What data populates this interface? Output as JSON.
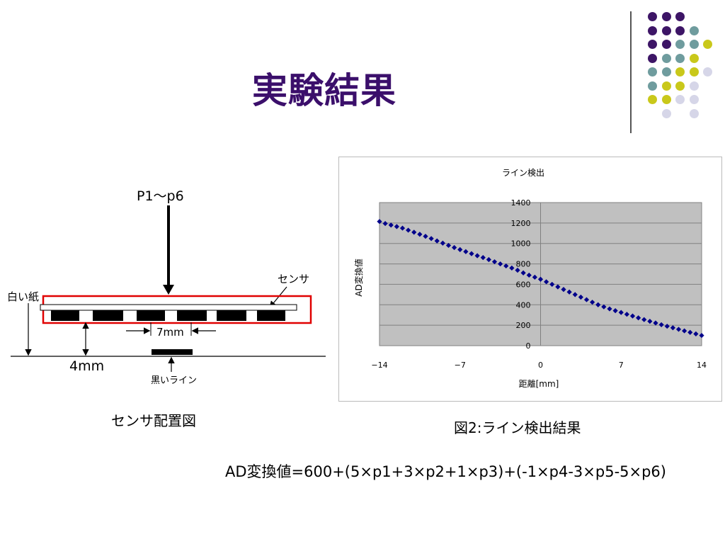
{
  "slide": {
    "title": "実験結果",
    "sensor_caption": "センサ配置図",
    "chart_caption": "図2:ライン検出結果",
    "formula": "AD変換値=600+(5×p1+3×p2+1×p3)+(-1×p4-3×p5-5×p6)"
  },
  "decoration": {
    "colors": {
      "purple": "#3d1566",
      "teal": "#6f9c9e",
      "yellow": "#c9c81a",
      "lavender": "#d6d6e8"
    },
    "rows": [
      [
        "purple",
        "purple",
        "purple",
        null
      ],
      [
        "purple",
        "purple",
        "purple",
        "teal"
      ],
      [
        "purple",
        "purple",
        "teal",
        "teal",
        "yellow"
      ],
      [
        "purple",
        "teal",
        "teal",
        "yellow"
      ],
      [
        "teal",
        "teal",
        "yellow",
        "yellow",
        "lavender"
      ],
      [
        "teal",
        "yellow",
        "yellow",
        "lavender"
      ],
      [
        "yellow",
        "yellow",
        "lavender",
        "lavender"
      ],
      [
        null,
        "lavender",
        null,
        "lavender"
      ]
    ]
  },
  "diagram": {
    "force_label": "P1～p6",
    "sensor_label": "センサ",
    "paper_label": "白い紙",
    "spacing_label": "7mm",
    "height_label": "4mm",
    "line_label": "黒いライン"
  },
  "chart_data": {
    "type": "scatter",
    "title": "ライン検出",
    "xlabel": "距離[mm]",
    "ylabel": "AD変換値",
    "xlim": [
      -14,
      14
    ],
    "ylim": [
      0,
      1400
    ],
    "xticks": [
      -14,
      -7,
      0,
      7,
      14
    ],
    "yticks": [
      0,
      200,
      400,
      600,
      800,
      1000,
      1200,
      1400
    ],
    "grid": "horizontal",
    "marker_color": "#00008b",
    "x": [
      -14,
      -13.5,
      -13,
      -12.5,
      -12,
      -11.5,
      -11,
      -10.5,
      -10,
      -9.5,
      -9,
      -8.5,
      -8,
      -7.5,
      -7,
      -6.5,
      -6,
      -5.5,
      -5,
      -4.5,
      -4,
      -3.5,
      -3,
      -2.5,
      -2,
      -1.5,
      -1,
      -0.5,
      0,
      0.5,
      1,
      1.5,
      2,
      2.5,
      3,
      3.5,
      4,
      4.5,
      5,
      5.5,
      6,
      6.5,
      7,
      7.5,
      8,
      8.5,
      9,
      9.5,
      10,
      10.5,
      11,
      11.5,
      12,
      12.5,
      13,
      13.5,
      14
    ],
    "values": [
      1215,
      1195,
      1180,
      1165,
      1150,
      1130,
      1110,
      1090,
      1070,
      1048,
      1025,
      1003,
      981,
      960,
      940,
      920,
      900,
      880,
      862,
      842,
      821,
      800,
      780,
      760,
      738,
      712,
      690,
      670,
      650,
      625,
      600,
      575,
      550,
      525,
      500,
      475,
      450,
      425,
      400,
      380,
      360,
      342,
      325,
      307,
      290,
      272,
      255,
      238,
      222,
      205,
      190,
      175,
      160,
      145,
      130,
      115,
      100
    ]
  }
}
